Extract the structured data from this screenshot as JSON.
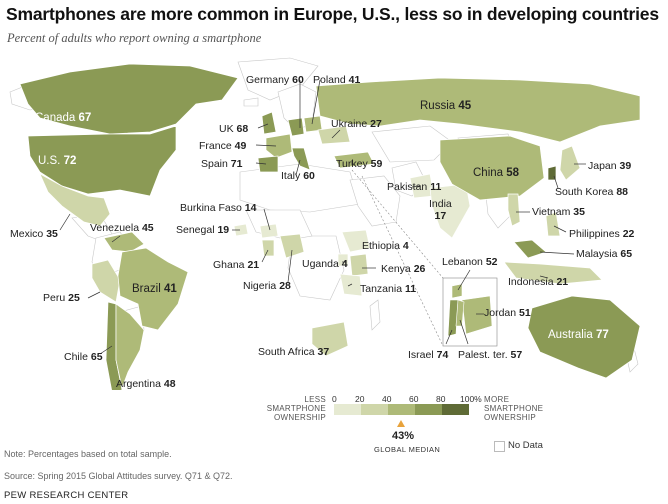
{
  "header": {
    "title": "Smartphones are more common in Europe, U.S., less so in developing countries",
    "subtitle": "Percent of adults who report owning a smartphone"
  },
  "countries": [
    {
      "id": "canada",
      "name": "Canada",
      "value": 67
    },
    {
      "id": "us",
      "name": "U.S.",
      "value": 72
    },
    {
      "id": "mexico",
      "name": "Mexico",
      "value": 35
    },
    {
      "id": "venezuela",
      "name": "Venezuela",
      "value": 45
    },
    {
      "id": "peru",
      "name": "Peru",
      "value": 25
    },
    {
      "id": "brazil",
      "name": "Brazil",
      "value": 41
    },
    {
      "id": "chile",
      "name": "Chile",
      "value": 65
    },
    {
      "id": "argentina",
      "name": "Argentina",
      "value": 48
    },
    {
      "id": "uk",
      "name": "UK",
      "value": 68
    },
    {
      "id": "france",
      "name": "France",
      "value": 49
    },
    {
      "id": "spain",
      "name": "Spain",
      "value": 71
    },
    {
      "id": "italy",
      "name": "Italy",
      "value": 60
    },
    {
      "id": "germany",
      "name": "Germany",
      "value": 60
    },
    {
      "id": "poland",
      "name": "Poland",
      "value": 41
    },
    {
      "id": "ukraine",
      "name": "Ukraine",
      "value": 27
    },
    {
      "id": "russia",
      "name": "Russia",
      "value": 45
    },
    {
      "id": "turkey",
      "name": "Turkey",
      "value": 59
    },
    {
      "id": "burkina",
      "name": "Burkina Faso",
      "value": 14
    },
    {
      "id": "senegal",
      "name": "Senegal",
      "value": 19
    },
    {
      "id": "ghana",
      "name": "Ghana",
      "value": 21
    },
    {
      "id": "nigeria",
      "name": "Nigeria",
      "value": 28
    },
    {
      "id": "uganda",
      "name": "Uganda",
      "value": 4
    },
    {
      "id": "ethiopia",
      "name": "Ethiopia",
      "value": 4
    },
    {
      "id": "kenya",
      "name": "Kenya",
      "value": 26
    },
    {
      "id": "tanzania",
      "name": "Tanzania",
      "value": 11
    },
    {
      "id": "southafrica",
      "name": "South Africa",
      "value": 37
    },
    {
      "id": "pakistan",
      "name": "Pakistan",
      "value": 11
    },
    {
      "id": "india",
      "name": "India",
      "value": 17
    },
    {
      "id": "china",
      "name": "China",
      "value": 58
    },
    {
      "id": "japan",
      "name": "Japan",
      "value": 39
    },
    {
      "id": "southkorea",
      "name": "South Korea",
      "value": 88
    },
    {
      "id": "vietnam",
      "name": "Vietnam",
      "value": 35
    },
    {
      "id": "philippines",
      "name": "Philippines",
      "value": 22
    },
    {
      "id": "malaysia",
      "name": "Malaysia",
      "value": 65
    },
    {
      "id": "indonesia",
      "name": "Indonesia",
      "value": 21
    },
    {
      "id": "australia",
      "name": "Australia",
      "value": 77
    },
    {
      "id": "lebanon",
      "name": "Lebanon",
      "value": 52
    },
    {
      "id": "jordan",
      "name": "Jordan",
      "value": 51
    },
    {
      "id": "israel",
      "name": "Israel",
      "value": 74
    },
    {
      "id": "palestine",
      "name": "Palest. ter.",
      "value": 57
    }
  ],
  "legend": {
    "less_label": "LESS SMARTPHONE OWNERSHIP",
    "more_label": "MORE SMARTPHONE OWNERSHIP",
    "ticks": [
      "0",
      "20",
      "40",
      "60",
      "80",
      "100%"
    ],
    "bins": [
      {
        "range": [
          0,
          20
        ],
        "color": "#e6ead2"
      },
      {
        "range": [
          20,
          40
        ],
        "color": "#cfd6a9"
      },
      {
        "range": [
          40,
          60
        ],
        "color": "#aeba78"
      },
      {
        "range": [
          60,
          80
        ],
        "color": "#8b9a55"
      },
      {
        "range": [
          80,
          100
        ],
        "color": "#5f6b36"
      }
    ],
    "median_value": "43%",
    "median_label": "GLOBAL MEDIAN",
    "no_data_label": "No Data",
    "no_data_color": "#ffffff"
  },
  "footer": {
    "note": "Note: Percentages based on total sample.",
    "source": "Source: Spring 2015 Global Attitudes survey. Q71 & Q72.",
    "org": "PEW RESEARCH CENTER"
  }
}
